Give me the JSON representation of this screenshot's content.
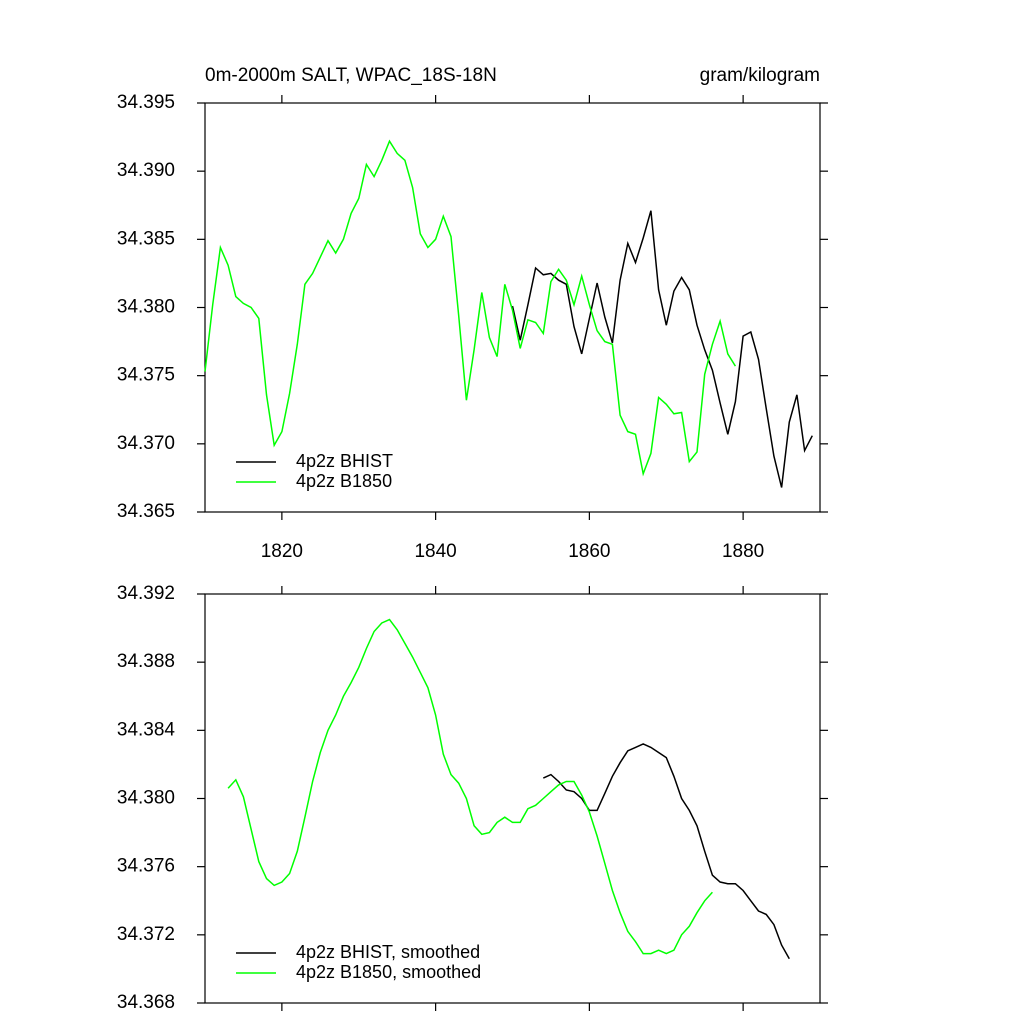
{
  "chart_data": [
    {
      "type": "line",
      "title": "0m-2000m SALT, WPAC_18S-18N",
      "units": "gram/kilogram",
      "xlim": [
        1810,
        1890
      ],
      "xticks": [
        1820,
        1840,
        1860,
        1880
      ],
      "ylim": [
        34.365,
        34.395
      ],
      "yticks": [
        34.365,
        {
          "value": 34.37,
          "label": "34.370"
        },
        34.375,
        {
          "value": 34.38,
          "label": "34.380"
        },
        34.385,
        {
          "value": 34.39,
          "label": "34.390"
        },
        34.395
      ],
      "legend": "lower left",
      "series": [
        {
          "name": "4p2z BHIST",
          "color": "#000000",
          "x": [
            1850,
            1851,
            1852,
            1853,
            1854,
            1855,
            1856,
            1857,
            1858,
            1859,
            1860,
            1861,
            1862,
            1863,
            1864,
            1865,
            1866,
            1867,
            1868,
            1869,
            1870,
            1871,
            1872,
            1873,
            1874,
            1875,
            1876,
            1877,
            1878,
            1879,
            1880,
            1881,
            1882,
            1883,
            1884,
            1885,
            1886,
            1887,
            1888,
            1889
          ],
          "values": [
            34.3801,
            34.3776,
            34.3802,
            34.3829,
            34.3824,
            34.3825,
            34.382,
            34.3817,
            34.3786,
            34.3766,
            34.3792,
            34.3818,
            34.3793,
            34.3774,
            34.382,
            34.3847,
            34.3833,
            34.3851,
            34.3871,
            34.3813,
            34.3787,
            34.3812,
            34.3822,
            34.3813,
            34.3787,
            34.3769,
            34.3754,
            34.373,
            34.3707,
            34.3731,
            34.3779,
            34.3782,
            34.3762,
            34.3726,
            34.3691,
            34.3668,
            34.3716,
            34.3736,
            34.3695,
            34.3706
          ]
        },
        {
          "name": "4p2z B1850",
          "color": "#00ff00",
          "x": [
            1810,
            1811,
            1812,
            1813,
            1814,
            1815,
            1816,
            1817,
            1818,
            1819,
            1820,
            1821,
            1822,
            1823,
            1824,
            1825,
            1826,
            1827,
            1828,
            1829,
            1830,
            1831,
            1832,
            1833,
            1834,
            1835,
            1836,
            1837,
            1838,
            1839,
            1840,
            1841,
            1842,
            1843,
            1844,
            1845,
            1846,
            1847,
            1848,
            1849,
            1850,
            1851,
            1852,
            1853,
            1854,
            1855,
            1856,
            1857,
            1858,
            1859,
            1860,
            1861,
            1862,
            1863,
            1864,
            1865,
            1866,
            1867,
            1868,
            1869,
            1870,
            1871,
            1872,
            1873,
            1874,
            1875,
            1876,
            1877,
            1878,
            1879
          ],
          "values": [
            34.3753,
            34.3802,
            34.3844,
            34.3831,
            34.3808,
            34.3803,
            34.38,
            34.3792,
            34.3736,
            34.3699,
            34.3709,
            34.3737,
            34.3773,
            34.3817,
            34.3825,
            34.3837,
            34.3849,
            34.384,
            34.385,
            34.3869,
            34.388,
            34.3905,
            34.3896,
            34.3908,
            34.3922,
            34.3913,
            34.3908,
            34.3888,
            34.3854,
            34.3844,
            34.385,
            34.3867,
            34.3852,
            34.3794,
            34.3732,
            34.3769,
            34.3811,
            34.3778,
            34.3764,
            34.3817,
            34.3798,
            34.377,
            34.3791,
            34.3789,
            34.3781,
            34.3819,
            34.3828,
            34.382,
            34.3802,
            34.3823,
            34.3802,
            34.3783,
            34.3775,
            34.3773,
            34.3721,
            34.3709,
            34.3707,
            34.3678,
            34.3693,
            34.3734,
            34.3729,
            34.3722,
            34.3723,
            34.3687,
            34.3694,
            34.3751,
            34.3773,
            34.379,
            34.3766,
            34.3757
          ]
        }
      ]
    },
    {
      "type": "line",
      "xlim": [
        1810,
        1890
      ],
      "ylim": [
        34.368,
        34.392
      ],
      "yticks": [
        34.368,
        34.372,
        34.376,
        {
          "value": 34.38,
          "label": "34.380"
        },
        34.384,
        34.388,
        34.392
      ],
      "legend": "lower left",
      "series": [
        {
          "name": "4p2z BHIST, smoothed",
          "color": "#000000",
          "x": [
            1854,
            1855,
            1856,
            1857,
            1858,
            1859,
            1860,
            1861,
            1862,
            1863,
            1864,
            1865,
            1866,
            1867,
            1868,
            1869,
            1870,
            1871,
            1872,
            1873,
            1874,
            1875,
            1876,
            1877,
            1878,
            1879,
            1880,
            1881,
            1882,
            1883,
            1884,
            1885,
            1886
          ],
          "values": [
            34.3812,
            34.3814,
            34.381,
            34.3805,
            34.3804,
            34.38,
            34.3793,
            34.3793,
            34.3803,
            34.3813,
            34.3821,
            34.3828,
            34.383,
            34.3832,
            34.383,
            34.3827,
            34.3824,
            34.3813,
            34.38,
            34.3793,
            34.3784,
            34.3769,
            34.3755,
            34.3751,
            34.375,
            34.375,
            34.3746,
            34.374,
            34.3734,
            34.3732,
            34.3726,
            34.3714,
            34.3706
          ]
        },
        {
          "name": "4p2z B1850, smoothed",
          "color": "#00ff00",
          "x": [
            1813,
            1814,
            1815,
            1816,
            1817,
            1818,
            1819,
            1820,
            1821,
            1822,
            1823,
            1824,
            1825,
            1826,
            1827,
            1828,
            1829,
            1830,
            1831,
            1832,
            1833,
            1834,
            1835,
            1836,
            1837,
            1838,
            1839,
            1840,
            1841,
            1842,
            1843,
            1844,
            1845,
            1846,
            1847,
            1848,
            1849,
            1850,
            1851,
            1852,
            1853,
            1854,
            1855,
            1856,
            1857,
            1858,
            1859,
            1860,
            1861,
            1862,
            1863,
            1864,
            1865,
            1866,
            1867,
            1868,
            1869,
            1870,
            1871,
            1872,
            1873,
            1874,
            1875,
            1876
          ],
          "values": [
            34.3806,
            34.3811,
            34.3801,
            34.3782,
            34.3763,
            34.3753,
            34.3749,
            34.3751,
            34.3756,
            34.3769,
            34.3789,
            34.381,
            34.3827,
            34.384,
            34.3849,
            34.386,
            34.3868,
            34.3877,
            34.3888,
            34.3898,
            34.3903,
            34.3905,
            34.3899,
            34.3891,
            34.3883,
            34.3874,
            34.3865,
            34.3849,
            34.3826,
            34.3814,
            34.3809,
            34.38,
            34.3784,
            34.3779,
            34.378,
            34.3786,
            34.3789,
            34.3786,
            34.3786,
            34.3794,
            34.3796,
            34.38,
            34.3804,
            34.3808,
            34.381,
            34.381,
            34.3802,
            34.3792,
            34.3778,
            34.3762,
            34.3746,
            34.3733,
            34.3722,
            34.3716,
            34.3709,
            34.3709,
            34.3711,
            34.3709,
            34.3711,
            34.372,
            34.3725,
            34.3733,
            34.374,
            34.3745
          ]
        }
      ]
    }
  ]
}
